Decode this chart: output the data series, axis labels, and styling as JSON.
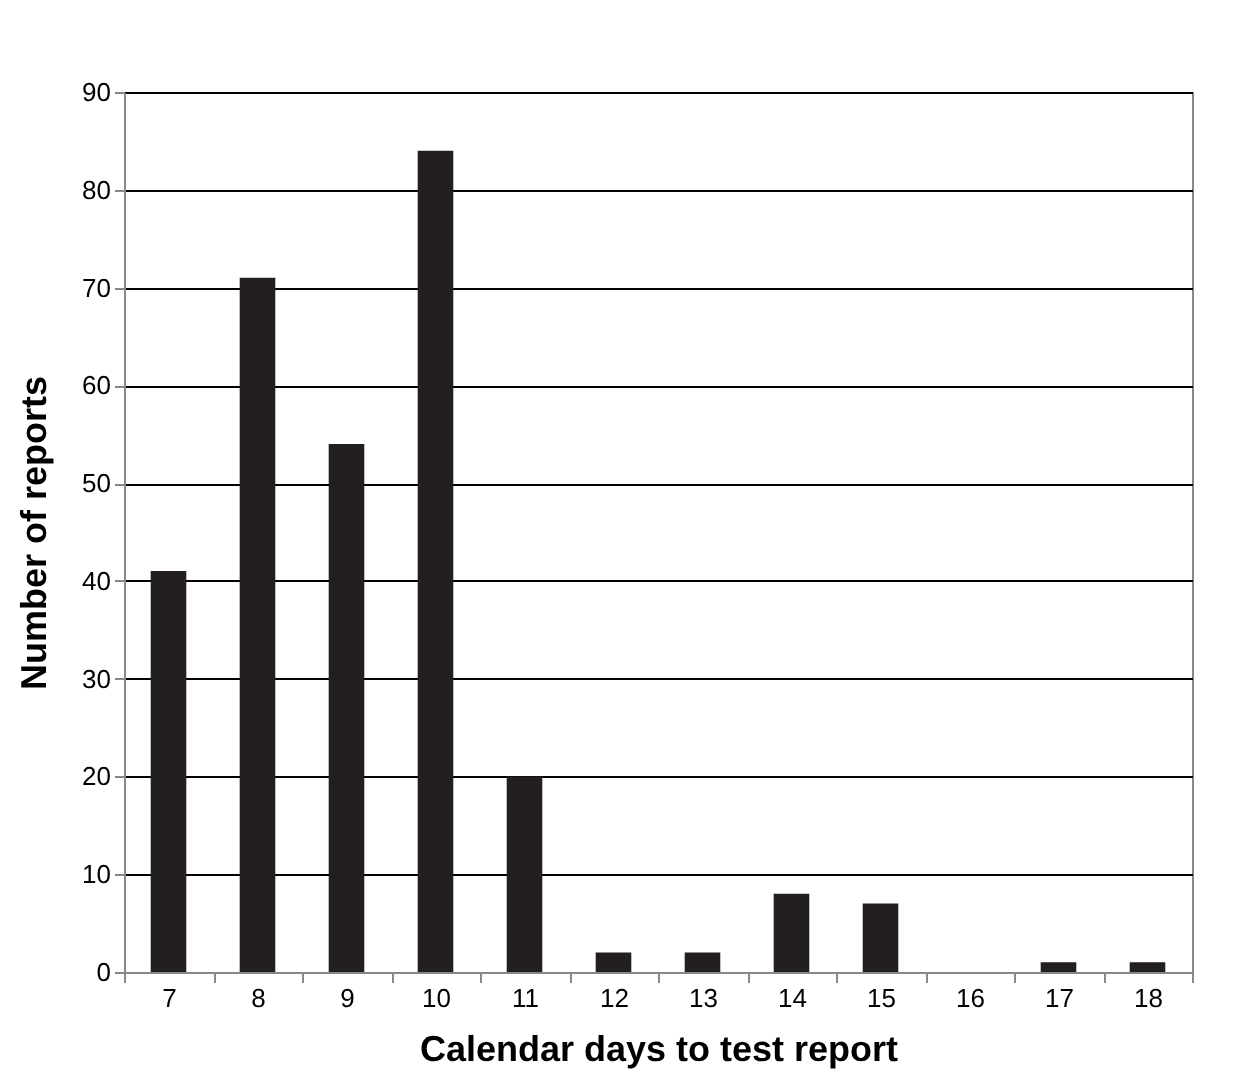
{
  "chart_data": {
    "type": "bar",
    "xlabel": "Calendar days to test report",
    "ylabel": "Number of reports",
    "categories": [
      "7",
      "8",
      "9",
      "10",
      "11",
      "12",
      "13",
      "14",
      "15",
      "16",
      "17",
      "18"
    ],
    "values": [
      41,
      71,
      54,
      84,
      20,
      2,
      2,
      8,
      7,
      0,
      1,
      1
    ],
    "color": "#231f20",
    "ylim": [
      0,
      90
    ],
    "yticks": [
      0,
      10,
      20,
      30,
      40,
      50,
      60,
      70,
      80,
      90
    ],
    "grid": "y"
  }
}
